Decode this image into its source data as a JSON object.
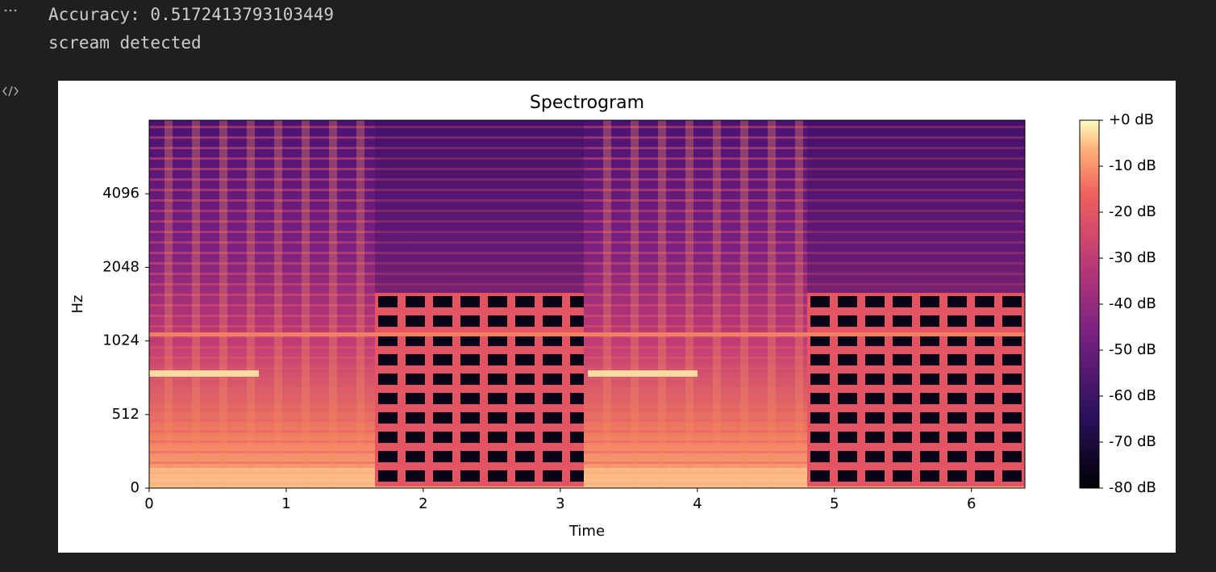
{
  "output": {
    "lines": [
      "Accuracy: 0.5172413793103449",
      "scream detected"
    ]
  },
  "chart_data": {
    "type": "spectrogram",
    "title": "Spectrogram",
    "x_label": "Time",
    "y_label": "Hz",
    "xlim": [
      0,
      6.39
    ],
    "xticks": [
      0,
      1,
      2,
      3,
      4,
      5,
      6
    ],
    "ylim": [
      0,
      8192
    ],
    "yticks": [
      0,
      512,
      1024,
      2048,
      4096
    ],
    "yscale": "symlog",
    "linthresh": 512,
    "colorbar": {
      "lim": [
        -80,
        0
      ],
      "ticks": [
        {
          "value": 0,
          "label": "+0 dB"
        },
        {
          "value": -10,
          "label": "-10 dB"
        },
        {
          "value": -20,
          "label": "-20 dB"
        },
        {
          "value": -30,
          "label": "-30 dB"
        },
        {
          "value": -40,
          "label": "-40 dB"
        },
        {
          "value": -50,
          "label": "-50 dB"
        },
        {
          "value": -60,
          "label": "-60 dB"
        },
        {
          "value": -70,
          "label": "-70 dB"
        },
        {
          "value": -80,
          "label": "-80 dB"
        }
      ]
    }
  }
}
